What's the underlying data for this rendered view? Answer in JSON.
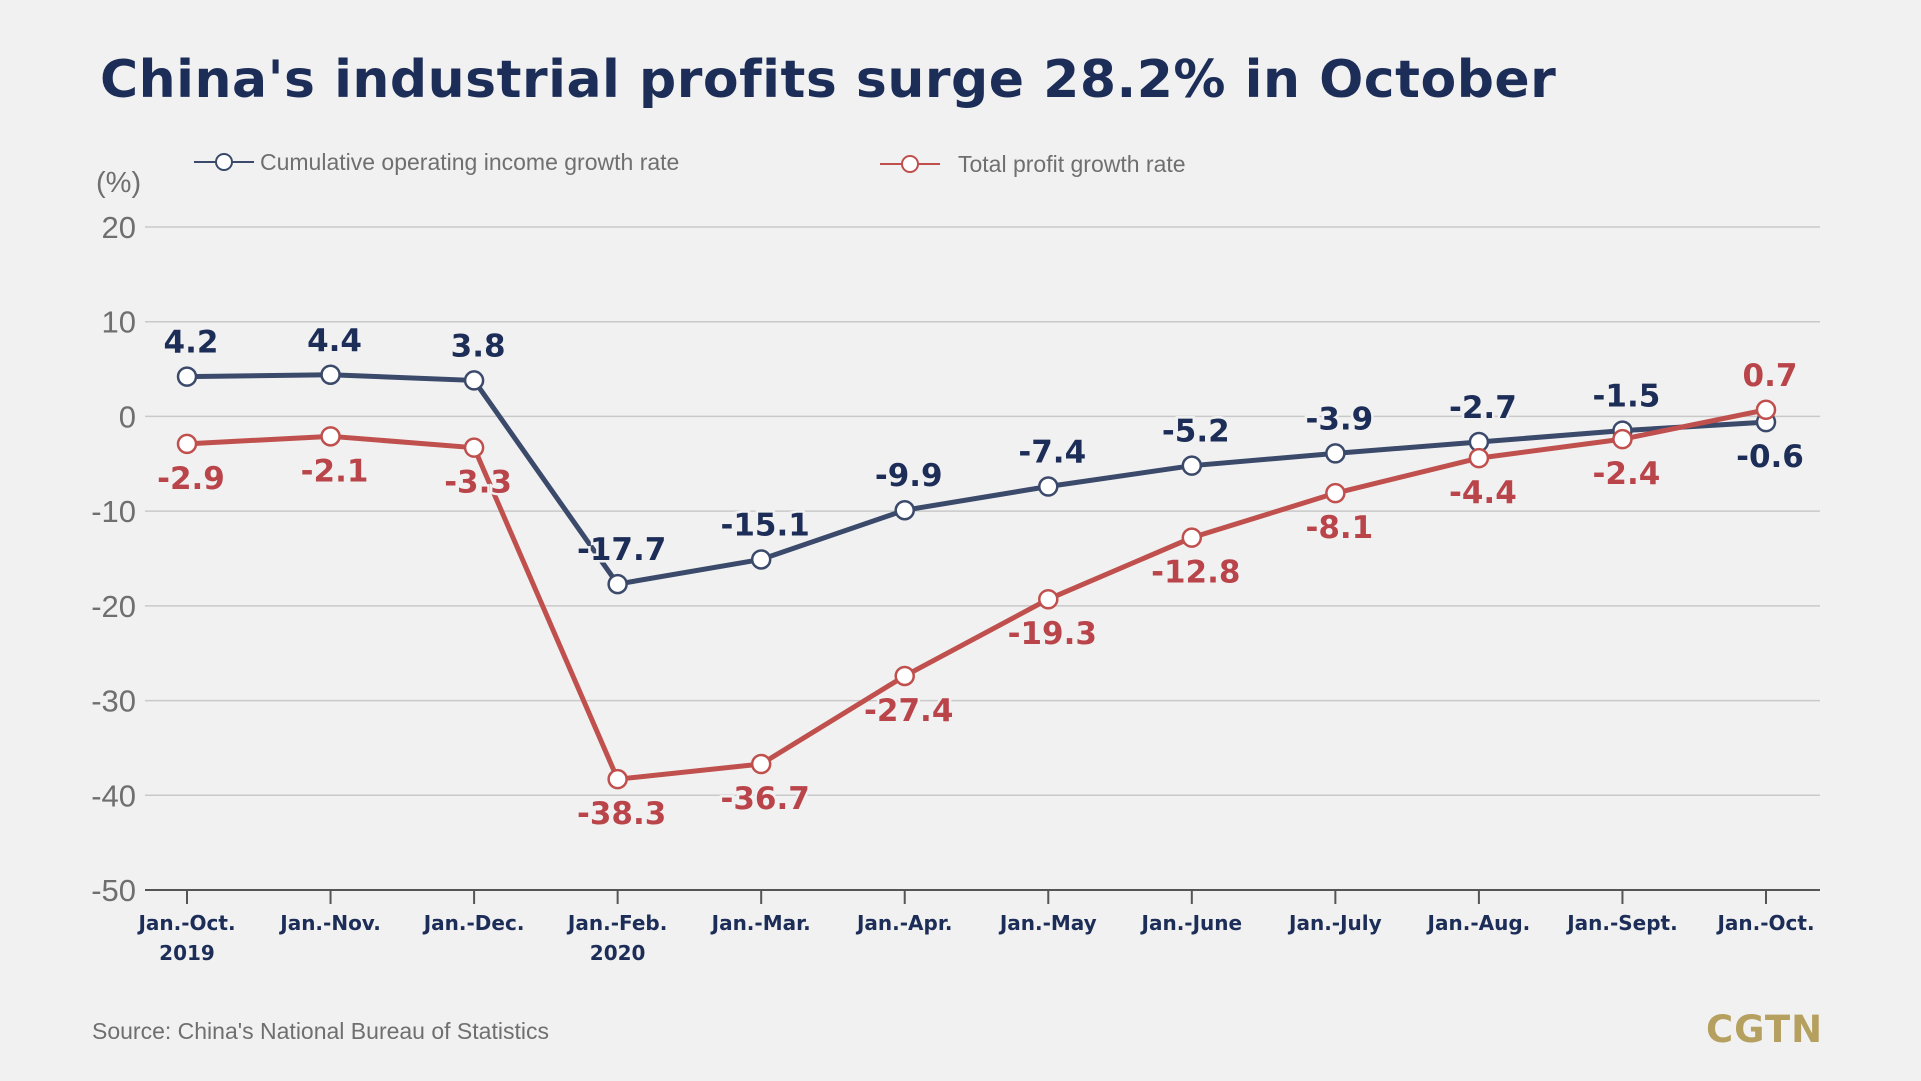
{
  "title": "China's industrial profits surge 28.2% in October",
  "source": "Source: China's National Bureau of Statistics",
  "logo": "CGTN",
  "colors": {
    "income": "#3b4a6b",
    "profit": "#c0504d",
    "income_label": "#1c2d57",
    "profit_label": "#b9444a"
  },
  "chart_data": {
    "type": "line",
    "title": "China's industrial profits surge 28.2% in October",
    "ylabel": "(%)",
    "ylim": [
      -50,
      20
    ],
    "yticks": [
      20,
      10,
      0,
      -10,
      -20,
      -30,
      -40,
      -50
    ],
    "grid": true,
    "legend_position": "top",
    "categories": [
      [
        "Jan.-Oct.",
        "2019"
      ],
      [
        "Jan.-Nov."
      ],
      [
        "Jan.-Dec."
      ],
      [
        "Jan.-Feb.",
        "2020"
      ],
      [
        "Jan.-Mar."
      ],
      [
        "Jan.-Apr."
      ],
      [
        "Jan.-May"
      ],
      [
        "Jan.-June"
      ],
      [
        "Jan.-July"
      ],
      [
        "Jan.-Aug."
      ],
      [
        "Jan.-Sept."
      ],
      [
        "Jan.-Oct."
      ]
    ],
    "series": [
      {
        "name": "Cumulative operating income growth rate",
        "key": "income",
        "values": [
          4.2,
          4.4,
          3.8,
          -17.7,
          -15.1,
          -9.9,
          -7.4,
          -5.2,
          -3.9,
          -2.7,
          -1.5,
          -0.6
        ]
      },
      {
        "name": "Total profit growth rate",
        "key": "profit",
        "values": [
          -2.9,
          -2.1,
          -3.3,
          -38.3,
          -36.7,
          -27.4,
          -19.3,
          -12.8,
          -8.1,
          -4.4,
          -2.4,
          0.7
        ]
      }
    ]
  }
}
